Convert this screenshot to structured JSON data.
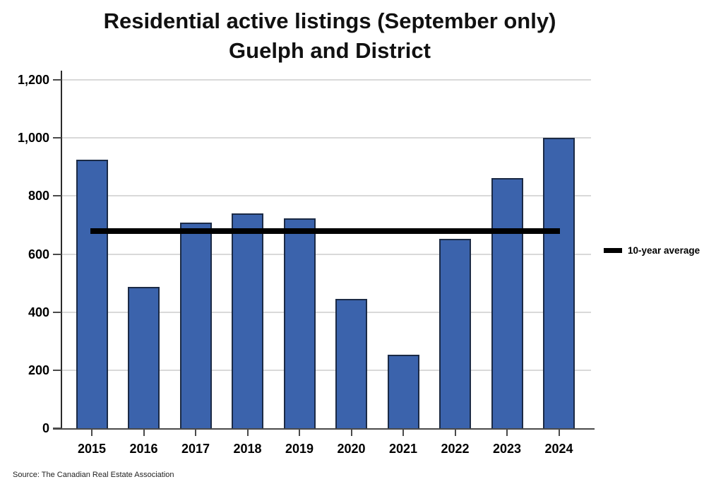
{
  "title": {
    "line1": "Residential active listings (September only)",
    "line2": "Guelph and District"
  },
  "legend": {
    "label": "10-year average"
  },
  "source_note": "Source: The Canadian Real Estate Association",
  "colors": {
    "bar_fill": "#3b63ac",
    "bar_border": "#1b2a45",
    "average_line": "#000000",
    "gridline": "#d9d9d9",
    "axis": "#4a4a4a"
  },
  "chart_data": {
    "type": "bar",
    "title": "Residential active listings (September only) Guelph and District",
    "categories": [
      "2015",
      "2016",
      "2017",
      "2018",
      "2019",
      "2020",
      "2021",
      "2022",
      "2023",
      "2024"
    ],
    "values": [
      925,
      487,
      708,
      741,
      723,
      445,
      252,
      652,
      861,
      1001
    ],
    "average_line": {
      "label": "10-year average",
      "value": 679
    },
    "xlabel": "",
    "ylabel": "",
    "ylim": [
      0,
      1200
    ],
    "ytick_step": 200,
    "ytick_labels": [
      "0",
      "200",
      "400",
      "600",
      "800",
      "1,000",
      "1,200"
    ],
    "grid": true,
    "legend_position": "right"
  }
}
